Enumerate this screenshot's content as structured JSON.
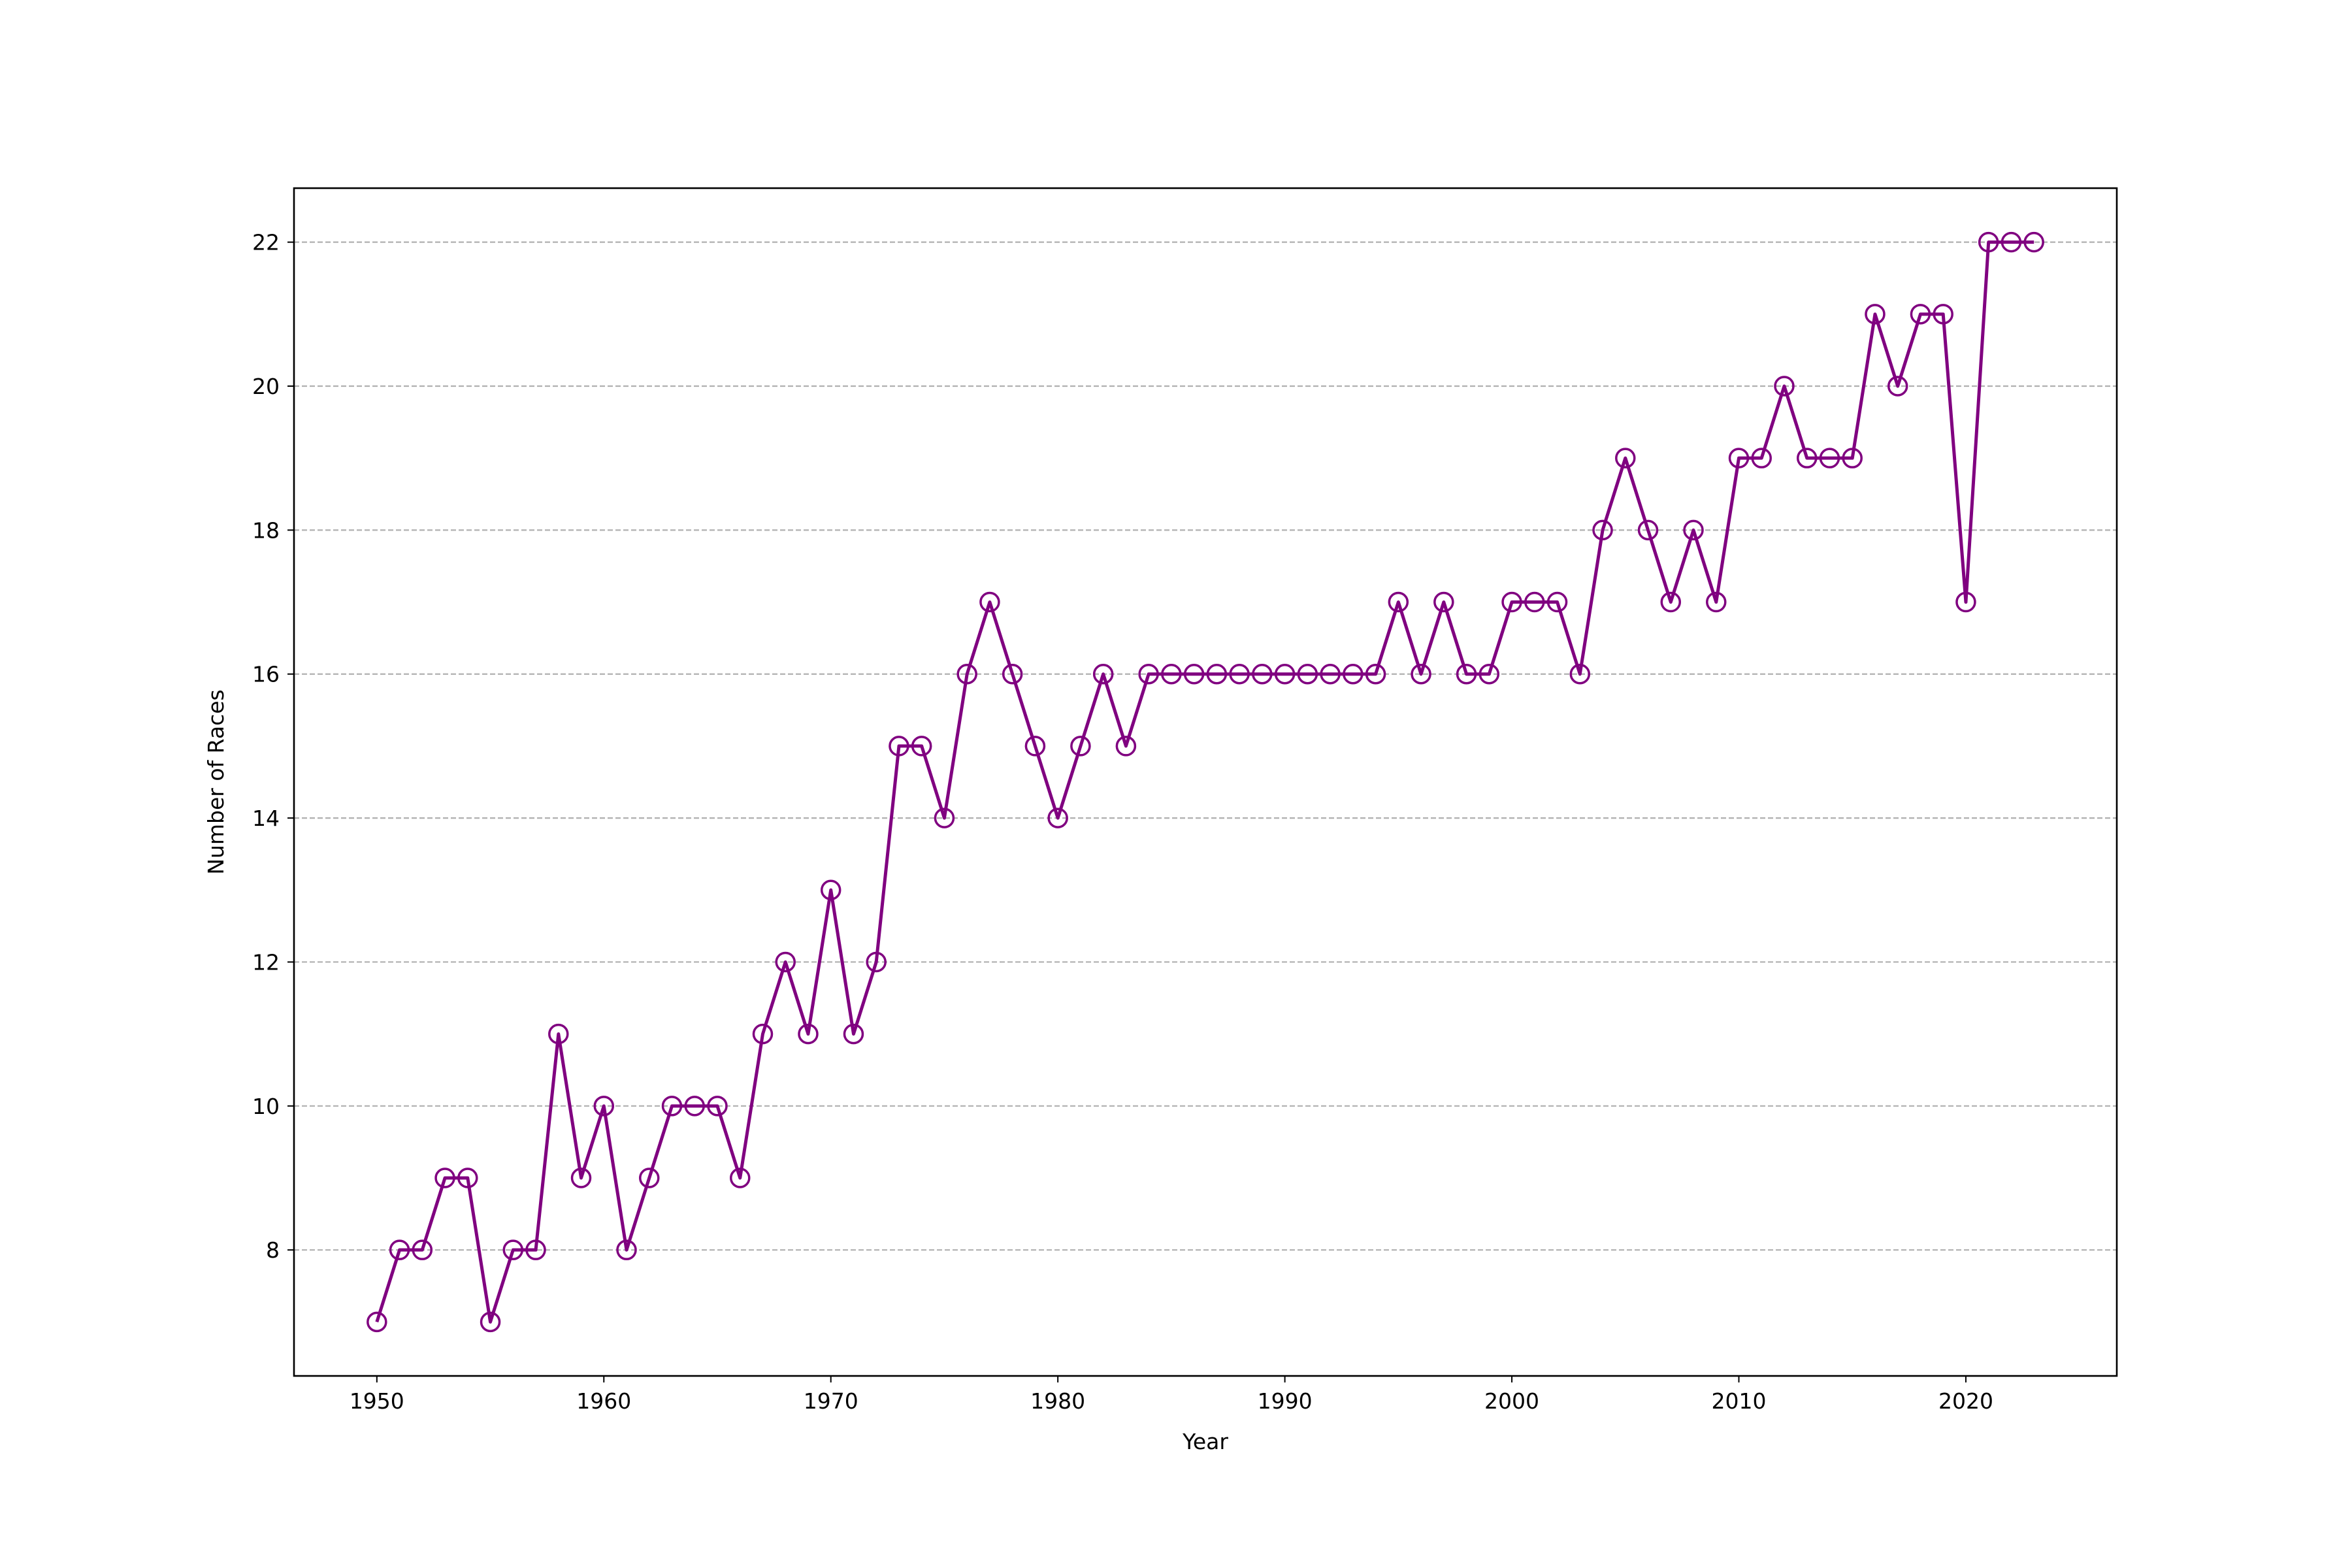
{
  "chart_data": {
    "type": "line",
    "title": "",
    "xlabel": "Year",
    "ylabel": "Number of Races",
    "xlim": [
      1946.35,
      2026.65
    ],
    "ylim": [
      6.25,
      22.75
    ],
    "x_ticks": [
      1950,
      1960,
      1970,
      1980,
      1990,
      2000,
      2010,
      2020
    ],
    "y_ticks": [
      8,
      10,
      12,
      14,
      16,
      18,
      20,
      22
    ],
    "grid": "y-axis, dashed",
    "legend": "none",
    "color": "#800080",
    "marker": "hollow-circle",
    "series": [
      {
        "x": [
          1950,
          1951,
          1952,
          1953,
          1954,
          1955,
          1956,
          1957,
          1958,
          1959,
          1960,
          1961,
          1962,
          1963,
          1964,
          1965,
          1966,
          1967,
          1968,
          1969,
          1970,
          1971,
          1972,
          1973,
          1974,
          1975,
          1976,
          1977,
          1978,
          1979,
          1980,
          1981,
          1982,
          1983,
          1984,
          1985,
          1986,
          1987,
          1988,
          1989,
          1990,
          1991,
          1992,
          1993,
          1994,
          1995,
          1996,
          1997,
          1998,
          1999,
          2000,
          2001,
          2002,
          2003,
          2004,
          2005,
          2006,
          2007,
          2008,
          2009,
          2010,
          2011,
          2012,
          2013,
          2014,
          2015,
          2016,
          2017,
          2018,
          2019,
          2020,
          2021,
          2022,
          2023
        ],
        "values": [
          7,
          8,
          8,
          9,
          9,
          7,
          8,
          8,
          11,
          9,
          10,
          8,
          9,
          10,
          10,
          10,
          9,
          11,
          12,
          11,
          13,
          11,
          12,
          15,
          15,
          14,
          16,
          17,
          16,
          15,
          14,
          15,
          16,
          15,
          16,
          16,
          16,
          16,
          16,
          16,
          16,
          16,
          16,
          16,
          16,
          17,
          16,
          17,
          16,
          16,
          17,
          17,
          17,
          16,
          18,
          19,
          18,
          17,
          18,
          17,
          19,
          19,
          20,
          19,
          19,
          19,
          21,
          20,
          21,
          21,
          17,
          22,
          22,
          22
        ]
      }
    ]
  }
}
